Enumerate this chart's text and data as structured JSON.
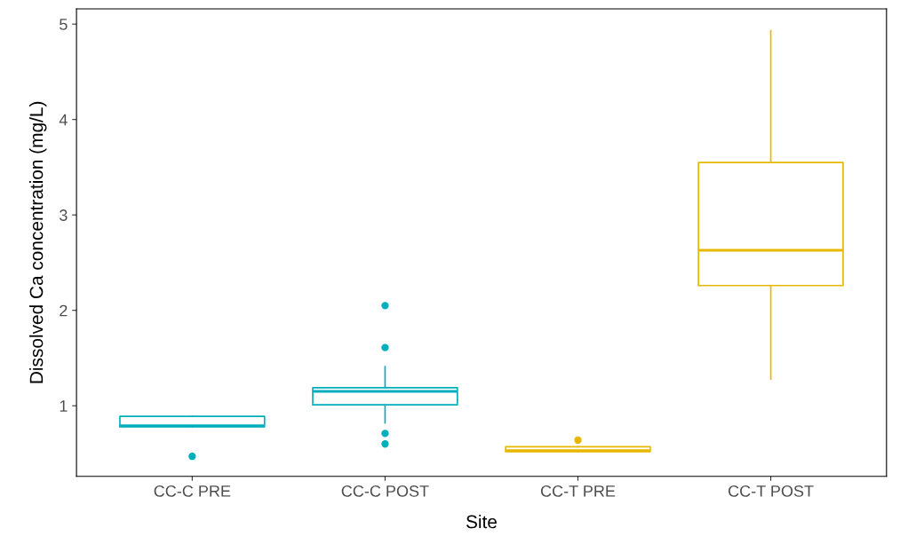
{
  "chart_data": {
    "type": "box",
    "xlabel": "Site",
    "ylabel": "Dissolved Ca concentration (mg/L)",
    "categories": [
      "CC-C PRE",
      "CC-C POST",
      "CC-T PRE",
      "CC-T POST"
    ],
    "colors": [
      "#00afbb",
      "#00afbb",
      "#e7b800",
      "#e7b800"
    ],
    "boxes": [
      {
        "low": 0.78,
        "q1": 0.78,
        "median": 0.79,
        "q3": 0.89,
        "high": 0.89,
        "outliers": [
          0.47
        ]
      },
      {
        "low": 0.82,
        "q1": 1.01,
        "median": 1.15,
        "q3": 1.19,
        "high": 1.41,
        "outliers": [
          2.05,
          1.61,
          0.71,
          0.6
        ]
      },
      {
        "low": 0.52,
        "q1": 0.52,
        "median": 0.53,
        "q3": 0.57,
        "high": 0.57,
        "outliers": [
          0.64
        ]
      },
      {
        "low": 1.28,
        "q1": 2.26,
        "median": 2.63,
        "q3": 3.55,
        "high": 4.93
      }
    ],
    "ylim": [
      0.26,
      5.16
    ],
    "yticks": [
      1,
      2,
      3,
      4,
      5
    ],
    "grid": false,
    "legend": false
  }
}
